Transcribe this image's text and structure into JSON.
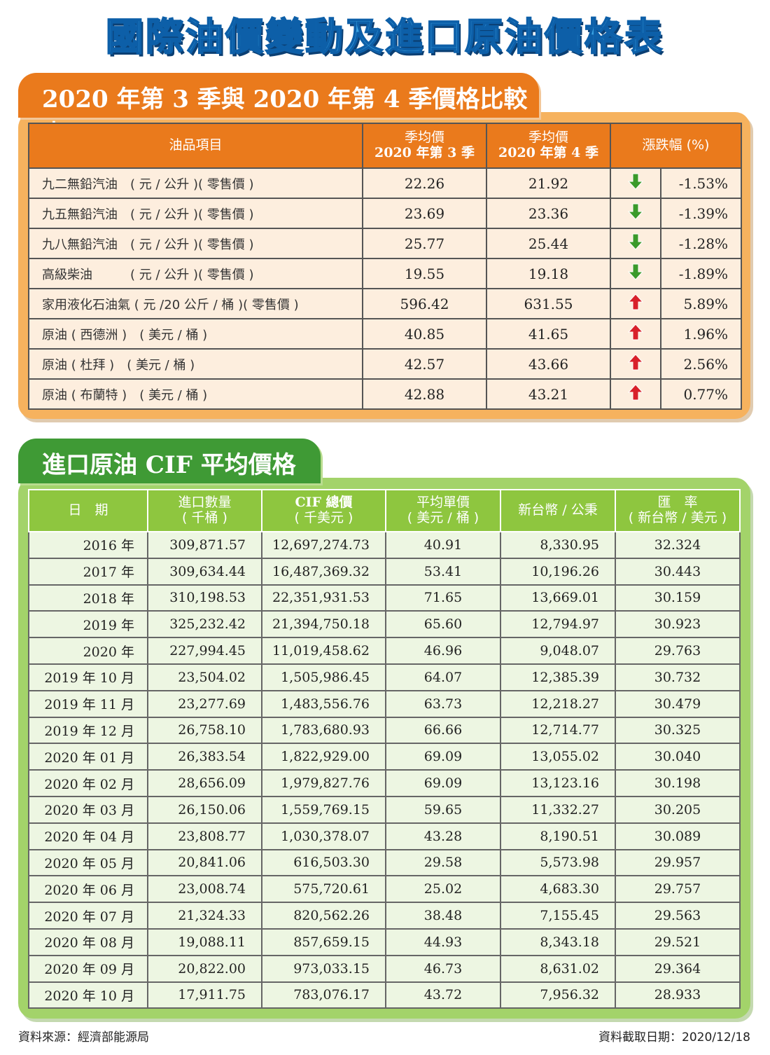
{
  "title": "國際油價變動及進口原油價格表",
  "section1": {
    "heading": "2020 年第 3 季與 2020 年第 4 季價格比較表",
    "headers": {
      "item": "油品項目",
      "q3_line1": "季均價",
      "q3_line2": "2020 年第 3 季",
      "q4_line1": "季均價",
      "q4_line2": "2020 年第 4 季",
      "change": "漲跌幅 (%)"
    },
    "rows": [
      {
        "item": "九二無鉛汽油　( 元 / 公升 )( 零售價 )",
        "q3": "22.26",
        "q4": "21.92",
        "direction": "down",
        "pct": "-1.53%"
      },
      {
        "item": "九五無鉛汽油　( 元 / 公升 )( 零售價 )",
        "q3": "23.69",
        "q4": "23.36",
        "direction": "down",
        "pct": "-1.39%"
      },
      {
        "item": "九八無鉛汽油　( 元 / 公升 )( 零售價 )",
        "q3": "25.77",
        "q4": "25.44",
        "direction": "down",
        "pct": "-1.28%"
      },
      {
        "item": "高級柴油　　　( 元 / 公升 )( 零售價 )",
        "q3": "19.55",
        "q4": "19.18",
        "direction": "down",
        "pct": "-1.89%"
      },
      {
        "item": "家用液化石油氣 ( 元 /20 公斤 / 桶 )( 零售價 )",
        "q3": "596.42",
        "q4": "631.55",
        "direction": "up",
        "pct": "5.89%"
      },
      {
        "item": "原油 ( 西德洲 )　( 美元 / 桶 )",
        "q3": "40.85",
        "q4": "41.65",
        "direction": "up",
        "pct": "1.96%"
      },
      {
        "item": "原油 ( 杜拜 )　( 美元 / 桶 )",
        "q3": "42.57",
        "q4": "43.66",
        "direction": "up",
        "pct": "2.56%"
      },
      {
        "item": "原油 ( 布蘭特 )　( 美元 / 桶 )",
        "q3": "42.88",
        "q4": "43.21",
        "direction": "up",
        "pct": "0.77%"
      }
    ],
    "colors": {
      "down": "#3a9a2a",
      "up": "#d8202a"
    }
  },
  "section2": {
    "heading": "進口原油 CIF 平均價格",
    "headers": {
      "date": "日　期",
      "qty_line1": "進口數量",
      "qty_line2": "( 千桶 )",
      "cif_line1": "CIF 總價",
      "cif_line2": "( 千美元 )",
      "unit_line1": "平均單價",
      "unit_line2": "( 美元 / 桶 )",
      "twd": "新台幣 / 公秉",
      "rate_line1": "匯　率",
      "rate_line2": "( 新台幣 / 美元 )"
    },
    "rows": [
      {
        "date": "2016 年",
        "qty": "309,871.57",
        "cif": "12,697,274.73",
        "unit": "40.91",
        "twd": "8,330.95",
        "rate": "32.324"
      },
      {
        "date": "2017 年",
        "qty": "309,634.44",
        "cif": "16,487,369.32",
        "unit": "53.41",
        "twd": "10,196.26",
        "rate": "30.443"
      },
      {
        "date": "2018 年",
        "qty": "310,198.53",
        "cif": "22,351,931.53",
        "unit": "71.65",
        "twd": "13,669.01",
        "rate": "30.159"
      },
      {
        "date": "2019 年",
        "qty": "325,232.42",
        "cif": "21,394,750.18",
        "unit": "65.60",
        "twd": "12,794.97",
        "rate": "30.923"
      },
      {
        "date": "2020 年",
        "qty": "227,994.45",
        "cif": "11,019,458.62",
        "unit": "46.96",
        "twd": "9,048.07",
        "rate": "29.763"
      },
      {
        "date": "2019 年 10 月",
        "qty": "23,504.02",
        "cif": "1,505,986.45",
        "unit": "64.07",
        "twd": "12,385.39",
        "rate": "30.732"
      },
      {
        "date": "2019 年 11 月",
        "qty": "23,277.69",
        "cif": "1,483,556.76",
        "unit": "63.73",
        "twd": "12,218.27",
        "rate": "30.479"
      },
      {
        "date": "2019 年 12 月",
        "qty": "26,758.10",
        "cif": "1,783,680.93",
        "unit": "66.66",
        "twd": "12,714.77",
        "rate": "30.325"
      },
      {
        "date": "2020 年 01 月",
        "qty": "26,383.54",
        "cif": "1,822,929.00",
        "unit": "69.09",
        "twd": "13,055.02",
        "rate": "30.040"
      },
      {
        "date": "2020 年 02 月",
        "qty": "28,656.09",
        "cif": "1,979,827.76",
        "unit": "69.09",
        "twd": "13,123.16",
        "rate": "30.198"
      },
      {
        "date": "2020 年 03 月",
        "qty": "26,150.06",
        "cif": "1,559,769.15",
        "unit": "59.65",
        "twd": "11,332.27",
        "rate": "30.205"
      },
      {
        "date": "2020 年 04 月",
        "qty": "23,808.77",
        "cif": "1,030,378.07",
        "unit": "43.28",
        "twd": "8,190.51",
        "rate": "30.089"
      },
      {
        "date": "2020 年 05 月",
        "qty": "20,841.06",
        "cif": "616,503.30",
        "unit": "29.58",
        "twd": "5,573.98",
        "rate": "29.957"
      },
      {
        "date": "2020 年 06 月",
        "qty": "23,008.74",
        "cif": "575,720.61",
        "unit": "25.02",
        "twd": "4,683.30",
        "rate": "29.757"
      },
      {
        "date": "2020 年 07 月",
        "qty": "21,324.33",
        "cif": "820,562.26",
        "unit": "38.48",
        "twd": "7,155.45",
        "rate": "29.563"
      },
      {
        "date": "2020 年 08 月",
        "qty": "19,088.11",
        "cif": "857,659.15",
        "unit": "44.93",
        "twd": "8,343.18",
        "rate": "29.521"
      },
      {
        "date": "2020 年 09 月",
        "qty": "20,822.00",
        "cif": "973,033.15",
        "unit": "46.73",
        "twd": "8,631.02",
        "rate": "29.364"
      },
      {
        "date": "2020 年 10 月",
        "qty": "17,911.75",
        "cif": "783,076.17",
        "unit": "43.72",
        "twd": "7,956.32",
        "rate": "28.933"
      }
    ]
  },
  "footer": {
    "source": "資料來源：經濟部能源局",
    "date": "資料截取日期：2020/12/18"
  }
}
